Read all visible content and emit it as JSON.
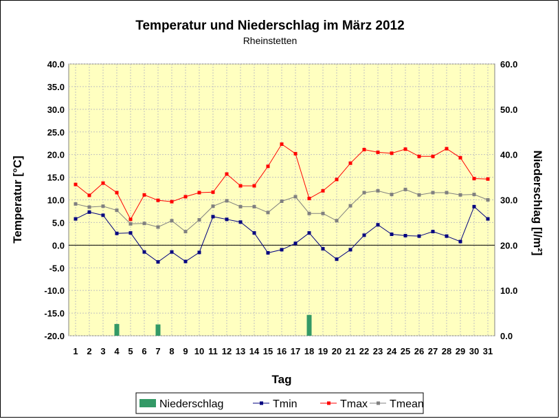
{
  "chart_data": {
    "type": "line",
    "title": "Temperatur und Niederschlag im März 2012",
    "subtitle": "Rheinstetten",
    "xlabel": "Tag",
    "ylabel_left": "Temperatur [°C]",
    "ylabel_right": "Niederschlag [l/m²]",
    "ylim_left": [
      -20,
      40
    ],
    "ylim_right": [
      0,
      60
    ],
    "yticks_left": [
      "-20.0",
      "-15.0",
      "-10.0",
      "-5.0",
      "0.0",
      "5.0",
      "10.0",
      "15.0",
      "20.0",
      "25.0",
      "30.0",
      "35.0",
      "40.0"
    ],
    "yticks_right": [
      "0.0",
      "10.0",
      "20.0",
      "30.0",
      "40.0",
      "50.0",
      "60.0"
    ],
    "categories": [
      "1",
      "2",
      "3",
      "4",
      "5",
      "6",
      "7",
      "8",
      "9",
      "10",
      "11",
      "12",
      "13",
      "14",
      "15",
      "16",
      "17",
      "18",
      "19",
      "20",
      "21",
      "22",
      "23",
      "24",
      "25",
      "26",
      "27",
      "28",
      "29",
      "30",
      "31"
    ],
    "grid": true,
    "legend_position": "bottom",
    "plot_background": "#ffffc0",
    "series": [
      {
        "name": "Niederschlag",
        "type": "bar",
        "axis": "right",
        "color": "#339966",
        "values": [
          0,
          0,
          0,
          2.6,
          0,
          0,
          2.5,
          0,
          0,
          0,
          0,
          0,
          0,
          0,
          0,
          0,
          0,
          4.6,
          0,
          0,
          0,
          0,
          0,
          0,
          0,
          0,
          0,
          0,
          0,
          0,
          0
        ]
      },
      {
        "name": "Tmin",
        "type": "line",
        "axis": "left",
        "color": "#000080",
        "values": [
          5.8,
          7.3,
          6.6,
          2.6,
          2.7,
          -1.5,
          -3.7,
          -1.5,
          -3.6,
          -1.6,
          6.3,
          5.7,
          5.1,
          2.7,
          -1.7,
          -1.0,
          0.4,
          2.7,
          -0.8,
          -3.1,
          -1.0,
          2.2,
          4.5,
          2.4,
          2.1,
          2.0,
          3.0,
          2.0,
          0.8,
          8.5,
          5.8
        ]
      },
      {
        "name": "Tmax",
        "type": "line",
        "axis": "left",
        "color": "#ff0000",
        "values": [
          13.4,
          11.0,
          13.7,
          11.6,
          5.7,
          11.1,
          9.9,
          9.6,
          10.7,
          11.6,
          11.7,
          15.7,
          13.1,
          13.1,
          17.4,
          22.3,
          20.2,
          10.3,
          12.0,
          14.5,
          18.1,
          21.1,
          20.5,
          20.3,
          21.2,
          19.6,
          19.6,
          21.3,
          19.3,
          14.7,
          14.6
        ]
      },
      {
        "name": "Tmean",
        "type": "line",
        "axis": "left",
        "color": "#808080",
        "values": [
          9.1,
          8.4,
          8.6,
          7.7,
          4.7,
          4.8,
          4.0,
          5.4,
          3.0,
          5.6,
          8.6,
          9.8,
          8.5,
          8.5,
          7.2,
          9.7,
          10.7,
          7.0,
          7.0,
          5.4,
          8.7,
          11.6,
          12.0,
          11.2,
          12.3,
          11.1,
          11.6,
          11.6,
          11.1,
          11.2,
          10.0
        ]
      }
    ]
  }
}
